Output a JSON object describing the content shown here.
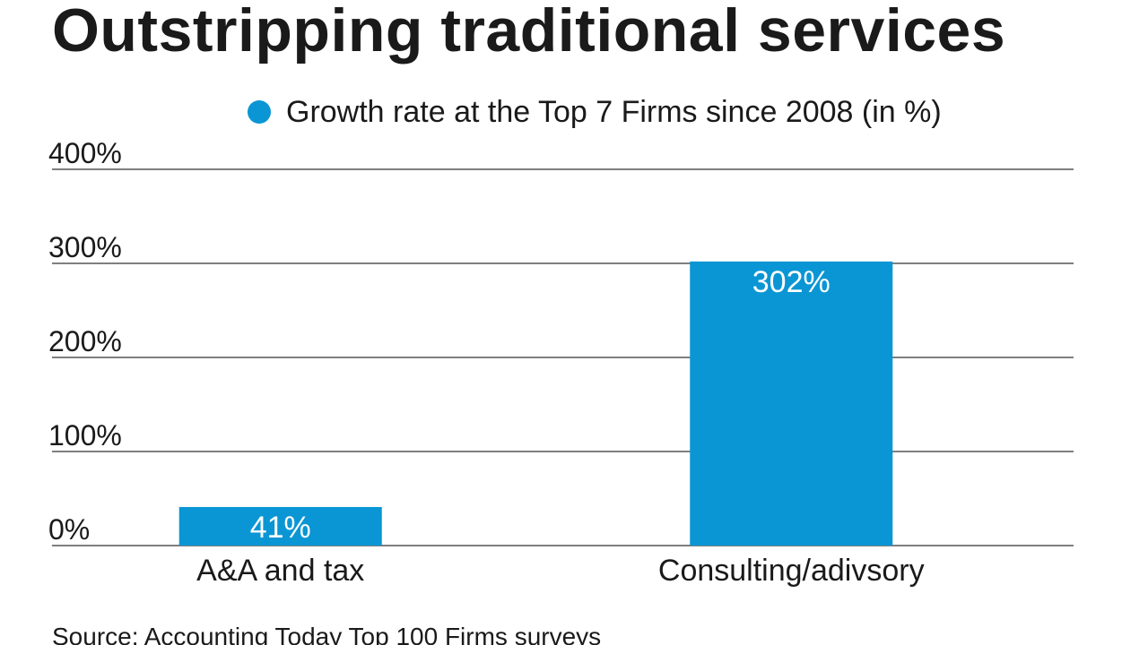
{
  "chart_data": {
    "type": "bar",
    "title": "Outstripping traditional services",
    "source": "Source: Accounting Today Top 100 Firms surveys",
    "categories": [
      "A&A and tax",
      "Consulting/adivsory"
    ],
    "series": [
      {
        "name": "Growth rate at the Top 7 Firms since 2008 (in %)",
        "values": [
          41,
          302
        ],
        "value_labels": [
          "41%",
          "302%"
        ],
        "color": "#0a96d4"
      }
    ],
    "ylim": [
      0,
      400
    ],
    "yticks": [
      0,
      100,
      200,
      300,
      400
    ],
    "ytick_labels": [
      "0%",
      "100%",
      "200%",
      "300%",
      "400%"
    ],
    "xlabel": "",
    "ylabel": "",
    "grid": true,
    "legend": "top",
    "colors": {
      "bar": "#0a96d4",
      "grid": "#333333",
      "text": "#1a1a1a",
      "value_label": "#ffffff"
    }
  }
}
